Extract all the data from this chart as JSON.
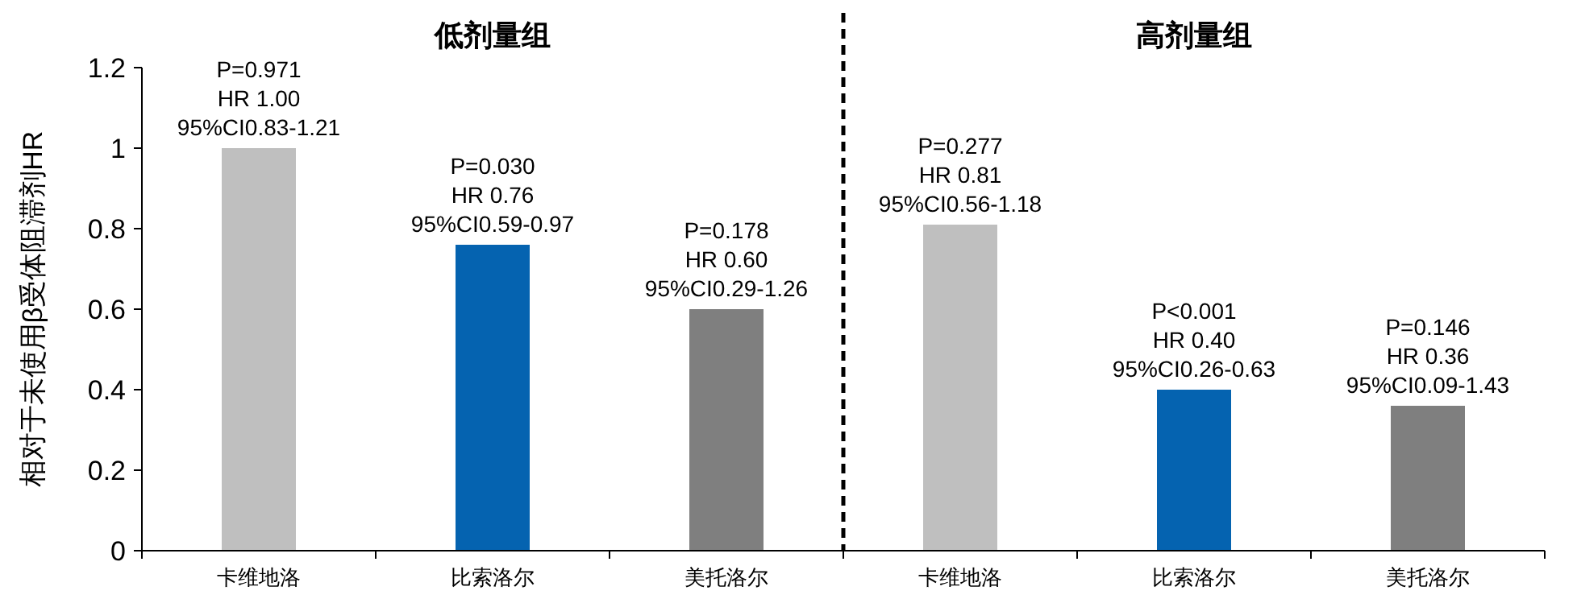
{
  "chart_data": {
    "type": "bar",
    "ylabel": "相对于未使用β受体阻滞剂HR",
    "categories": [
      "卡维地洛",
      "比索洛尔",
      "美托洛尔",
      "卡维地洛",
      "比索洛尔",
      "美托洛尔"
    ],
    "values": [
      1.0,
      0.76,
      0.6,
      0.81,
      0.4,
      0.36
    ],
    "colors": [
      "#bfbfbf",
      "#0563b0",
      "#7f7f7f",
      "#bfbfbf",
      "#0563b0",
      "#7f7f7f"
    ],
    "value_labels": [
      "P=0.971\nHR 1.00\n95%CI0.83-1.21",
      "P=0.030\nHR 0.76\n95%CI0.59-0.97",
      "P=0.178\nHR 0.60\n95%CI0.29-1.26",
      "P=0.277\nHR 0.81\n95%CI0.56-1.18",
      "P<0.001\nHR 0.40\n95%CI0.26-0.63",
      "P=0.146\nHR 0.36\n95%CI0.09-1.43"
    ],
    "annotations": [
      "低剂量组",
      "高剂量组"
    ],
    "ylim": [
      0,
      1.2
    ],
    "yticks": [
      0,
      0.2,
      0.4,
      0.6,
      0.8,
      1,
      1.2
    ],
    "grid": false
  }
}
